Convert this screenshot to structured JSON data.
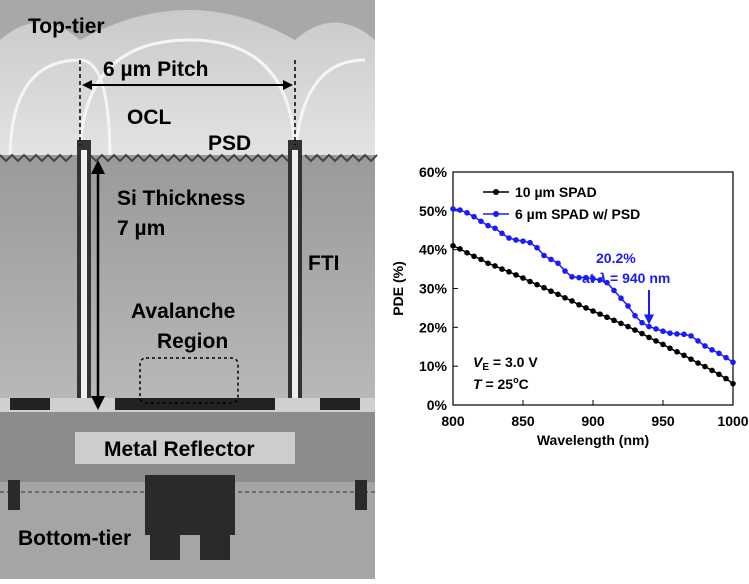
{
  "cross_section": {
    "labels": {
      "top_tier": "Top-tier",
      "pitch": "6 µm Pitch",
      "ocl": "OCL",
      "psd": "PSD",
      "si_thickness": "Si Thickness",
      "si_value": "7 µm",
      "fti": "FTI",
      "avalanche": "Avalanche",
      "region": "Region",
      "metal_reflector": "Metal Reflector",
      "bottom_tier": "Bottom-tier"
    }
  },
  "chart_data": {
    "type": "line",
    "xlabel": "Wavelength (nm)",
    "ylabel": "PDE (%)",
    "x": [
      800,
      805,
      810,
      815,
      820,
      825,
      830,
      835,
      840,
      845,
      850,
      855,
      860,
      865,
      870,
      875,
      880,
      885,
      890,
      895,
      900,
      905,
      910,
      915,
      920,
      925,
      930,
      935,
      940,
      945,
      950,
      955,
      960,
      965,
      970,
      975,
      980,
      985,
      990,
      995,
      1000
    ],
    "series": [
      {
        "name": "10 µm SPAD",
        "color": "#000000",
        "values": [
          41,
          40.2,
          39.2,
          38.3,
          37.5,
          36.5,
          35.8,
          35,
          34.3,
          33.5,
          32.7,
          31.8,
          31,
          30.2,
          29.3,
          28.5,
          27.6,
          26.8,
          25.8,
          25,
          24.2,
          23.4,
          22.6,
          21.8,
          21,
          20.2,
          19.3,
          18.4,
          17.4,
          16.5,
          15.6,
          14.6,
          13.7,
          12.8,
          11.8,
          10.8,
          9.9,
          8.9,
          7.9,
          6.8,
          5.5
        ]
      },
      {
        "name": "6 µm SPAD w/ PSD",
        "color": "#1a1aff",
        "values": [
          50.5,
          50.2,
          49.5,
          48.5,
          47.3,
          46.2,
          45.5,
          44.2,
          43,
          42.5,
          42.2,
          41.8,
          40.5,
          38.5,
          37.5,
          36.5,
          34.5,
          33,
          32.8,
          32.8,
          32.5,
          32.2,
          31.5,
          29.5,
          27.5,
          25.5,
          23,
          21.2,
          20.2,
          19.6,
          19,
          18.5,
          18.3,
          18.2,
          17.8,
          16.5,
          15.2,
          14.2,
          13.3,
          12.2,
          11
        ]
      }
    ],
    "xlim": [
      800,
      1000
    ],
    "xticks": [
      800,
      850,
      900,
      950,
      1000
    ],
    "ylim": [
      0,
      60
    ],
    "yticks": [
      {
        "value": 0,
        "label": "0%"
      },
      {
        "value": 10,
        "label": "10%"
      },
      {
        "value": 20,
        "label": "20%"
      },
      {
        "value": 30,
        "label": "30%"
      },
      {
        "value": 40,
        "label": "40%"
      },
      {
        "value": 50,
        "label": "50%"
      },
      {
        "value": 60,
        "label": "60%"
      }
    ],
    "legend": "upper left",
    "annotations": {
      "value": "20.2%",
      "at_a": "at ",
      "lambda": "λ",
      "at_b": " = 940 nm",
      "ve_v": "V",
      "ve_e": "E",
      "ve_rest": " = 3.0 V",
      "t_t": "T",
      "t_rest": " = 25",
      "t_o": "o",
      "t_c": "C"
    }
  }
}
